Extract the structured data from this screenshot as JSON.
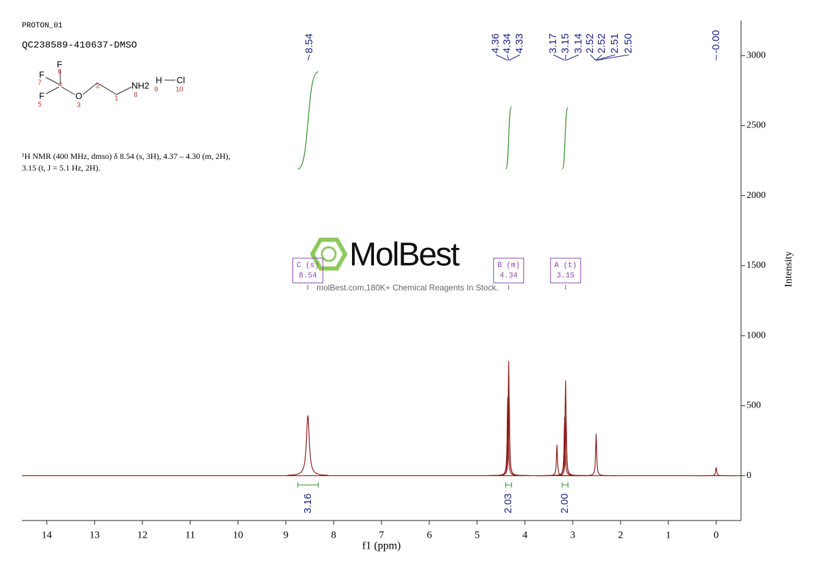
{
  "header": {
    "experiment": "PROTON_01",
    "sample": "QC238589-410637-DMSO"
  },
  "structure": {
    "atoms": [
      {
        "symbol": "F",
        "number": 6
      },
      {
        "symbol": "F",
        "number": 7
      },
      {
        "number": 4
      },
      {
        "symbol": "F",
        "number": 5
      },
      {
        "symbol": "O",
        "number": 3
      },
      {
        "number": 2
      },
      {
        "number": 1
      },
      {
        "symbol": "NH2",
        "number": 8
      },
      {
        "symbol": "H",
        "number": 9
      },
      {
        "symbol": "Cl",
        "number": 10
      }
    ]
  },
  "description": [
    "¹H NMR (400 MHz, dmso) δ 8.54 (s, 3H), 4.37 – 4.30 (m, 2H),",
    "3.15 (t, J = 5.1 Hz, 2H)."
  ],
  "watermark": {
    "brand": "MolBest",
    "tagline": "molBest.com,180K+ Chemical Reagents In Stock."
  },
  "chart_data": {
    "type": "nmr",
    "x_label": "f1 (ppm)",
    "y_label": "Intensity",
    "xlim": [
      14.52,
      -0.52
    ],
    "ylim": [
      -320,
      3250
    ],
    "xticks": [
      14,
      13,
      12,
      11,
      10,
      9,
      8,
      7,
      6,
      5,
      4,
      3,
      2,
      1,
      0
    ],
    "yticks": [
      0,
      500,
      1000,
      1500,
      2000,
      2500,
      3000
    ],
    "color": "#8b1a1a",
    "x": [
      8.54,
      4.36,
      4.34,
      4.33,
      3.33,
      3.17,
      3.15,
      3.14,
      2.51,
      0
    ],
    "values": [
      430,
      560,
      820,
      560,
      220,
      420,
      680,
      420,
      300,
      60
    ],
    "peak_labels": [
      8.54,
      4.36,
      4.34,
      4.33,
      3.17,
      3.15,
      3.14,
      2.52,
      2.52,
      2.51,
      {
        "value": 2.5,
        "label": "2.50"
      },
      {
        "value": 0,
        "label": "-0.00"
      }
    ],
    "multiplets": [
      {
        "label": "C (s)",
        "shift": 8.54
      },
      {
        "label": "B (m)",
        "shift": 4.34
      },
      {
        "label": "A (t)",
        "shift": 3.15
      }
    ],
    "integrals": [
      {
        "from": 8.75,
        "to": 8.32,
        "value": 3.16
      },
      {
        "from": 4.4,
        "to": 4.28,
        "value": 2.03
      },
      {
        "from": 3.22,
        "to": 3.1,
        "value": 2,
        "label": "2.00"
      }
    ],
    "integral_color": "#2e8b2e",
    "label_color": "#1a237e",
    "multiplet_color": "#8e44ad"
  }
}
